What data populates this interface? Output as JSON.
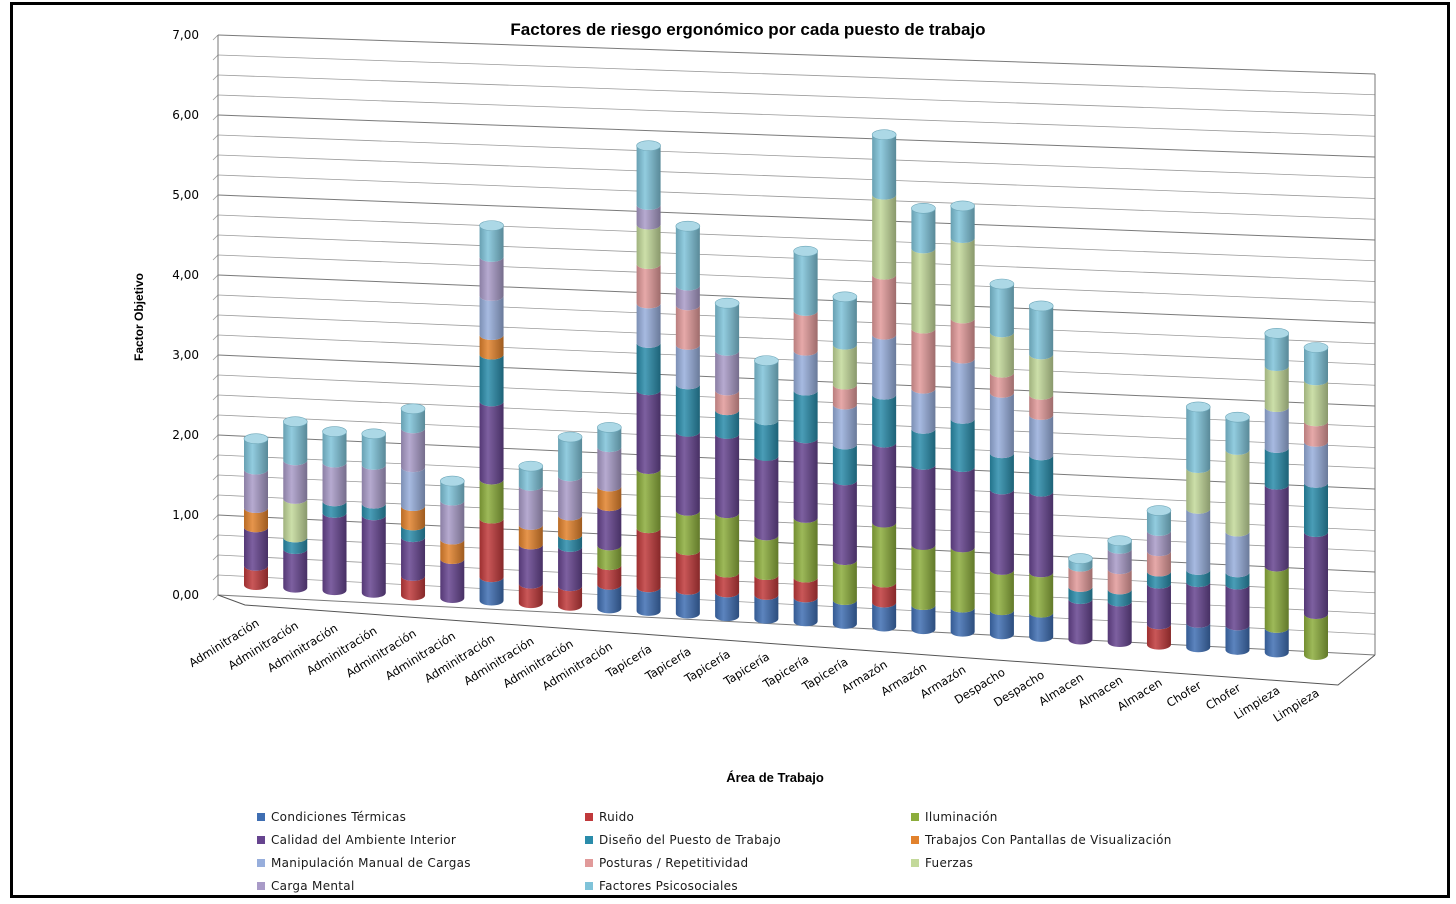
{
  "chart_data": {
    "type": "bar",
    "stacked": true,
    "three_d": true,
    "title": "Factores de riesgo ergonómico por cada puesto de trabajo",
    "xlabel": "Área de Trabajo",
    "ylabel": "Factor Objetivo",
    "ylim": [
      0,
      7
    ],
    "yticks": [
      "0,00",
      "1,00",
      "2,00",
      "3,00",
      "4,00",
      "5,00",
      "6,00",
      "7,00"
    ],
    "grid": true,
    "legend_position": "bottom",
    "categories": [
      "Adminitración",
      "Adminitración",
      "Adminitración",
      "Adminitración",
      "Adminitración",
      "Adminitración",
      "Adminitración",
      "Adminitración",
      "Adminitración",
      "Adminitración",
      "Tapicería",
      "Tapicería",
      "Tapicería",
      "Tapicería",
      "Tapicería",
      "Tapicería",
      "Armazón",
      "Armazón",
      "Armazón",
      "Despacho",
      "Despacho",
      "Almacen",
      "Almacen",
      "Almacen",
      "Chofer",
      "Chofer",
      "Limpieza",
      "Limpieza"
    ],
    "series": [
      {
        "name": "Condiciones Térmicas",
        "color": "#3F6EB2",
        "values": [
          0,
          0,
          0,
          0,
          0,
          0,
          0.3,
          0,
          0,
          0.3,
          0.3,
          0.3,
          0.3,
          0.3,
          0.3,
          0.3,
          0.3,
          0.3,
          0.3,
          0.3,
          0.3,
          0,
          0,
          0,
          0.3,
          0.3,
          0.3,
          0
        ]
      },
      {
        "name": "Ruido",
        "color": "#C0393B",
        "values": [
          0.25,
          0,
          0,
          0,
          0.25,
          0,
          0.75,
          0.25,
          0.25,
          0.25,
          0.75,
          0.5,
          0.25,
          0.25,
          0.25,
          0,
          0.25,
          0,
          0,
          0,
          0,
          0,
          0,
          0.25,
          0,
          0,
          0,
          0
        ]
      },
      {
        "name": "Iluminación",
        "color": "#8CAD3C",
        "values": [
          0,
          0,
          0,
          0,
          0,
          0,
          0.5,
          0,
          0,
          0.25,
          0.75,
          0.5,
          0.75,
          0.5,
          0.75,
          0.5,
          0.75,
          0.75,
          0.75,
          0.5,
          0.5,
          0,
          0,
          0,
          0,
          0,
          0.75,
          0.5
        ]
      },
      {
        "name": "Calidad del Ambiente Interior",
        "color": "#66448F",
        "values": [
          0.5,
          0.5,
          1,
          1,
          0.5,
          0.5,
          1,
          0.5,
          0.5,
          0.5,
          1,
          1,
          1,
          1,
          1,
          1,
          1,
          1,
          1,
          1,
          1,
          0.5,
          0.5,
          0.5,
          0.5,
          0.5,
          1,
          1
        ]
      },
      {
        "name": "Diseño del Puesto de Trabajo",
        "color": "#2A8CAA",
        "values": [
          0,
          0.15,
          0.15,
          0.15,
          0.15,
          0,
          0.6,
          0,
          0.15,
          0,
          0.6,
          0.6,
          0.3,
          0.45,
          0.6,
          0.45,
          0.6,
          0.45,
          0.6,
          0.45,
          0.45,
          0.15,
          0.15,
          0.15,
          0.15,
          0.15,
          0.45,
          0.6
        ]
      },
      {
        "name": "Trabajos Con Pantallas de Visualización",
        "color": "#E2822D",
        "values": [
          0.25,
          0,
          0,
          0,
          0.25,
          0.25,
          0.25,
          0.25,
          0.25,
          0.25,
          0,
          0,
          0,
          0,
          0,
          0,
          0,
          0,
          0,
          0,
          0,
          0,
          0,
          0,
          0,
          0,
          0,
          0
        ]
      },
      {
        "name": "Manipulación Manual de Cargas",
        "color": "#97AEDC",
        "values": [
          0,
          0,
          0,
          0,
          0.5,
          0,
          0.5,
          0,
          0,
          0,
          0.5,
          0.5,
          0,
          0,
          0.5,
          0.5,
          0.75,
          0.5,
          0.75,
          0.75,
          0.5,
          0,
          0,
          0,
          0.75,
          0.5,
          0.5,
          0.5
        ]
      },
      {
        "name": "Posturas / Repetitividad",
        "color": "#E19A9A",
        "values": [
          0,
          0,
          0,
          0,
          0,
          0,
          0,
          0,
          0,
          0,
          0.5,
          0.5,
          0.25,
          0,
          0.5,
          0.25,
          0.75,
          0.75,
          0.5,
          0.25,
          0.25,
          0.25,
          0.25,
          0.25,
          0,
          0,
          0,
          0.25
        ]
      },
      {
        "name": "Fuerzas",
        "color": "#C3D99A",
        "values": [
          0,
          0.5,
          0,
          0,
          0,
          0,
          0,
          0,
          0,
          0,
          0.5,
          0,
          0,
          0,
          0,
          0.5,
          1,
          1,
          1,
          0.5,
          0.5,
          0,
          0,
          0,
          0.5,
          1,
          0.5,
          0.5
        ]
      },
      {
        "name": "Carga Mental",
        "color": "#A99BC8",
        "values": [
          0.5,
          0.5,
          0.5,
          0.5,
          0.5,
          0.5,
          0.5,
          0.5,
          0.5,
          0.5,
          0.25,
          0.25,
          0.5,
          0,
          0,
          0,
          0,
          0,
          0,
          0,
          0,
          0,
          0.25,
          0.25,
          0,
          0,
          0,
          0
        ]
      },
      {
        "name": "Factores Psicosociales",
        "color": "#7FC3D9",
        "values": [
          0.4,
          0.5,
          0.4,
          0.4,
          0.25,
          0.25,
          0.4,
          0.25,
          0.5,
          0.25,
          0.75,
          0.75,
          0.6,
          0.75,
          0.75,
          0.6,
          0.75,
          0.5,
          0.4,
          0.6,
          0.6,
          0.1,
          0.1,
          0.25,
          0.75,
          0.4,
          0.4,
          0.4
        ]
      }
    ]
  }
}
